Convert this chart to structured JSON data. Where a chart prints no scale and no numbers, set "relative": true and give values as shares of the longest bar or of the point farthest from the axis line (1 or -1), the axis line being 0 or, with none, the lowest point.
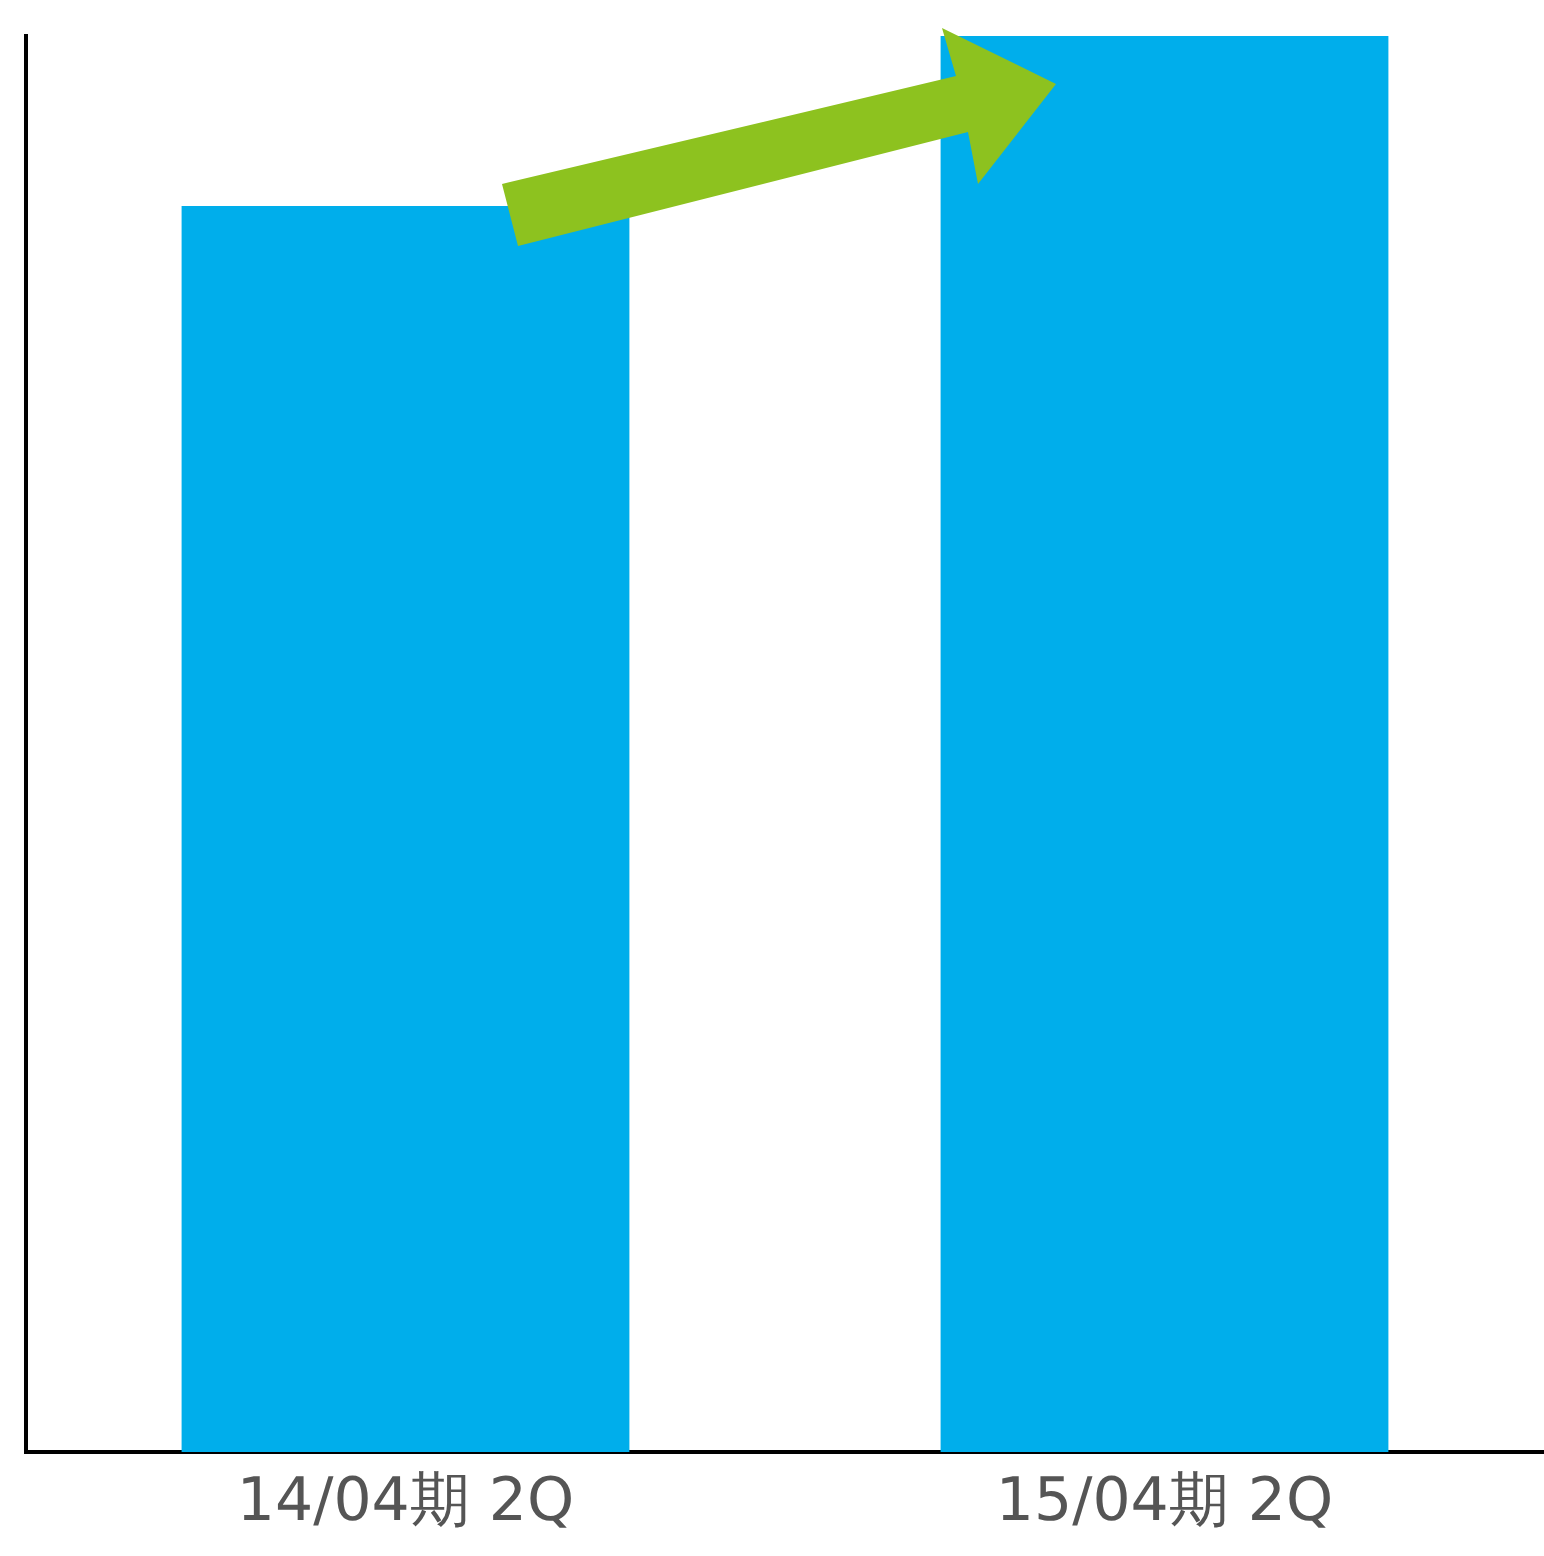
{
  "chart_data": {
    "type": "bar",
    "relative": true,
    "categories": [
      "14/04期 2Q",
      "15/04期 2Q"
    ],
    "values": [
      0.88,
      1
    ],
    "color": "#00aeeb",
    "grid": false,
    "legend": false
  }
}
